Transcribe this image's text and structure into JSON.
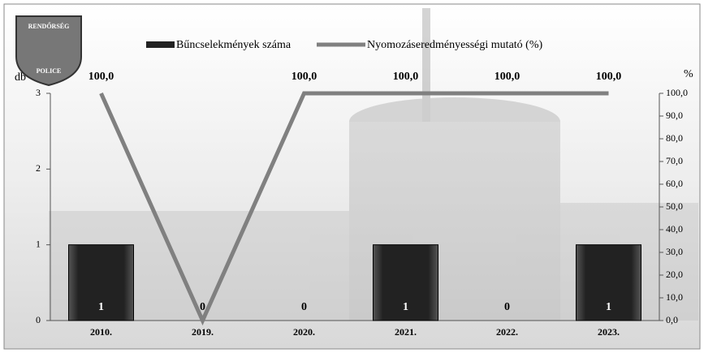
{
  "chart_data": {
    "type": "bar",
    "logo": {
      "top": "RENDŐRSÉG",
      "bottom": "POLICE"
    },
    "ylabel": "db",
    "y2label": "%",
    "categories": [
      "2010.",
      "2019.",
      "2020.",
      "2021.",
      "2022.",
      "2023."
    ],
    "series": [
      {
        "name": "Bűncselekmények száma",
        "type": "bar",
        "color": "#222222",
        "values": [
          1,
          0,
          0,
          1,
          0,
          1
        ]
      },
      {
        "name": "Nyomozáseredményességi mutató (%)",
        "type": "line",
        "axis": "y2",
        "color": "#808080",
        "values": [
          100,
          0,
          100,
          100,
          100,
          100
        ],
        "value_labels": [
          "100,0",
          null,
          "100,0",
          "100,0",
          "100,0",
          "100,0"
        ]
      }
    ],
    "ylim": [
      0,
      3
    ],
    "yticks": [
      0,
      1,
      2,
      3
    ],
    "y2lim": [
      0,
      100
    ],
    "y2ticks": [
      {
        "value": 0,
        "label": "0,0"
      },
      {
        "value": 10,
        "label": "10,0"
      },
      {
        "value": 20,
        "label": "20,0"
      },
      {
        "value": 30,
        "label": "30,0"
      },
      {
        "value": 40,
        "label": "40,0"
      },
      {
        "value": 50,
        "label": "50,0"
      },
      {
        "value": 60,
        "label": "60,0"
      },
      {
        "value": 70,
        "label": "70,0"
      },
      {
        "value": 80,
        "label": "80,0"
      },
      {
        "value": 90,
        "label": "90,0"
      },
      {
        "value": 100,
        "label": "100,0"
      }
    ]
  }
}
